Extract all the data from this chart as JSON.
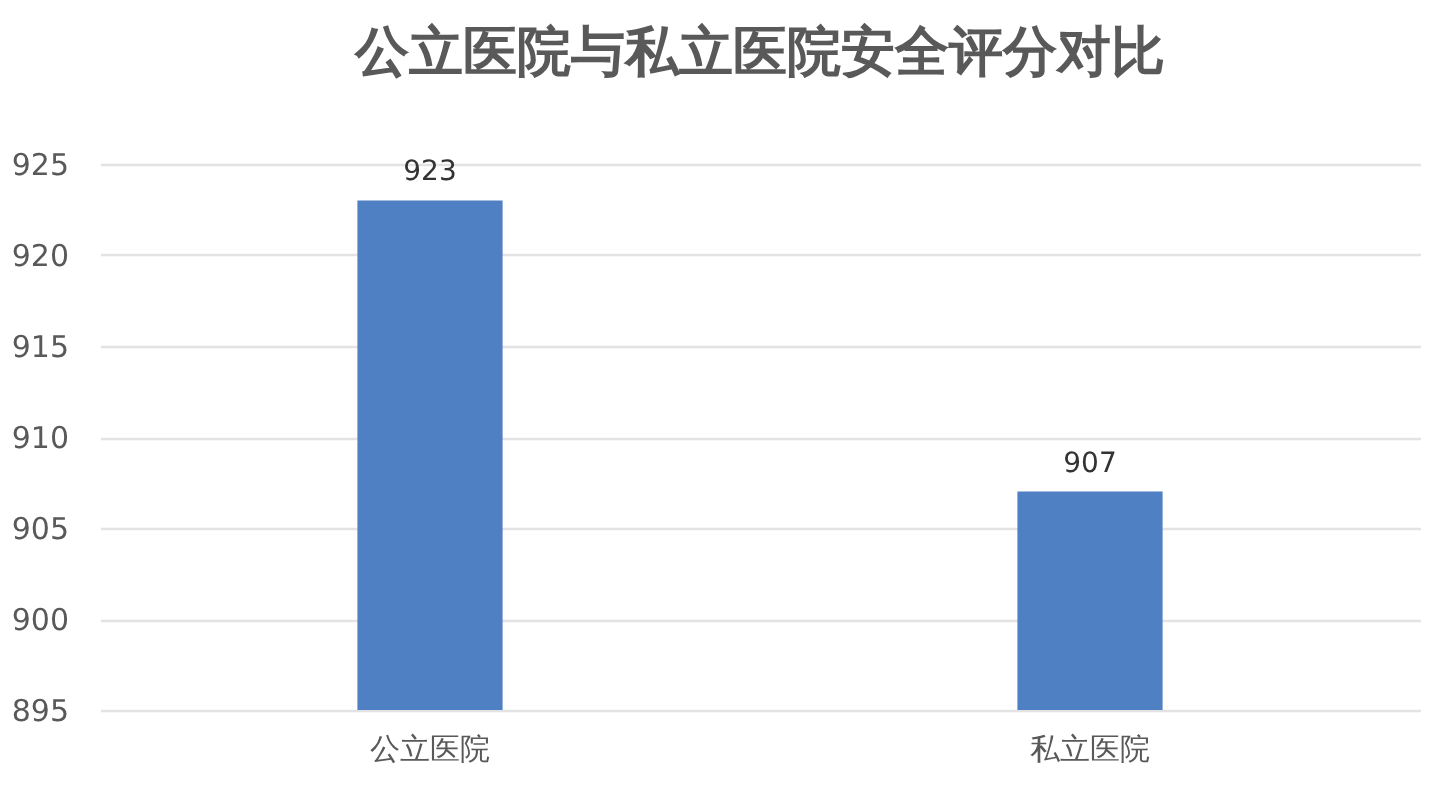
{
  "chart_data": {
    "type": "bar",
    "title": "公立医院与私立医院安全评分对比",
    "categories": [
      "公立医院",
      "私立医院"
    ],
    "values": [
      923,
      907
    ],
    "color": "#4f80c3",
    "ylim": [
      895,
      925
    ],
    "yticks": [
      895,
      900,
      905,
      910,
      915,
      920,
      925
    ],
    "grid": "y",
    "data_labels": true
  }
}
